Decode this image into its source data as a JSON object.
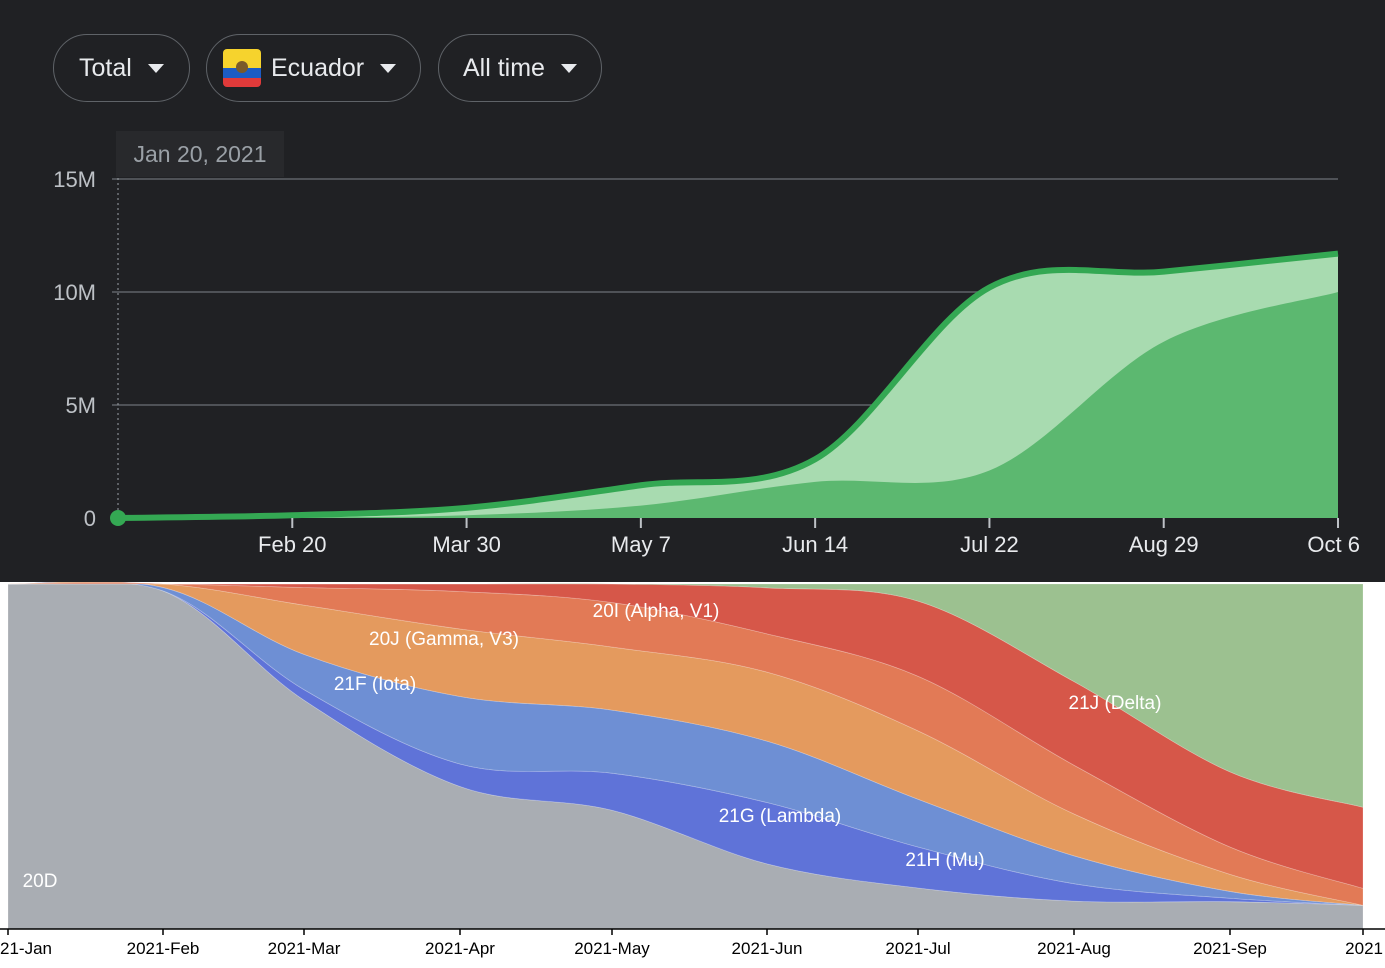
{
  "filters": {
    "metric": "Total",
    "country": "Ecuador",
    "range": "All time"
  },
  "tooltip": {
    "date": "Jan 20, 2021"
  },
  "icons": {
    "dropdown": "caret-down-icon",
    "flag": "ecuador-flag-icon"
  },
  "colors": {
    "background": "#202124",
    "line": "#34a853",
    "light_fill": "#a8dbb0",
    "dark_fill": "#5cb870",
    "gridline": "#5f6368"
  },
  "chart_data": [
    {
      "type": "area",
      "x": [
        "Jan 20, 2021",
        "Feb 20",
        "Mar 30",
        "May 7",
        "Jun 14",
        "Jul 22",
        "Aug 29",
        "Oct 6"
      ],
      "y_ticks": [
        "0",
        "5M",
        "10M",
        "15M"
      ],
      "ylim": [
        0,
        15000000
      ],
      "series": [
        {
          "values": [
            0,
            120000,
            450000,
            1450000,
            2600000,
            10200000,
            10900000,
            11700000
          ]
        },
        {
          "values": [
            0,
            20000,
            120000,
            550000,
            1600000,
            2100000,
            7800000,
            10000000
          ]
        }
      ]
    },
    {
      "type": "area",
      "categories": [
        "21-Jan",
        "2021-Feb",
        "2021-Mar",
        "2021-Apr",
        "2021-May",
        "2021-Jun",
        "2021-Jul",
        "2021-Aug",
        "2021-Sep",
        "2021"
      ],
      "series": [
        {
          "name": "20D",
          "values": [
            1.0,
            0.98,
            0.65,
            0.38,
            0.32,
            0.17,
            0.12,
            0.08,
            0.08,
            0.07
          ]
        },
        {
          "name": "20I (Alpha, V1)",
          "values": [
            0,
            0,
            0.03,
            0.06,
            0.1,
            0.16,
            0.12,
            0.05,
            0.01,
            0
          ]
        },
        {
          "name": "20J (Gamma, V3)",
          "values": [
            0,
            0.01,
            0.1,
            0.18,
            0.17,
            0.16,
            0.14,
            0.08,
            0.02,
            0
          ]
        },
        {
          "name": "21F (Iota)",
          "values": [
            0,
            0.01,
            0.14,
            0.18,
            0.17,
            0.18,
            0.2,
            0.12,
            0.05,
            0
          ]
        },
        {
          "name": "21G (Lambda)",
          "values": [
            0,
            0,
            0.05,
            0.1,
            0.12,
            0.1,
            0.16,
            0.14,
            0.08,
            0.05
          ]
        },
        {
          "name": "21H (Mu)",
          "values": [
            0,
            0,
            0.01,
            0.02,
            0.05,
            0.12,
            0.22,
            0.24,
            0.22,
            0.24
          ]
        },
        {
          "name": "21J (Delta)",
          "values": [
            0,
            0,
            0,
            0,
            0,
            0.01,
            0.05,
            0.28,
            0.55,
            0.66
          ]
        }
      ]
    }
  ]
}
